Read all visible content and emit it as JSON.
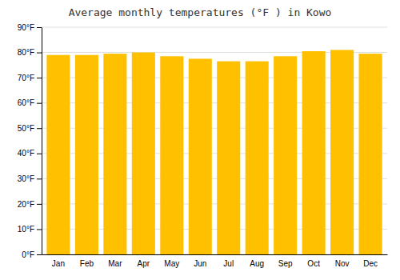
{
  "chart_data": {
    "type": "bar",
    "title": "Average monthly temperatures (°F ) in Kowo",
    "categories": [
      "Jan",
      "Feb",
      "Mar",
      "Apr",
      "May",
      "Jun",
      "Jul",
      "Aug",
      "Sep",
      "Oct",
      "Nov",
      "Dec"
    ],
    "values": [
      79,
      79,
      79.5,
      80,
      78.5,
      77.5,
      76.5,
      76.5,
      78.5,
      80.5,
      81,
      79.5
    ],
    "color": "#FFC000",
    "ylim": [
      0,
      90
    ],
    "yticks": [
      {
        "value": 0,
        "label": "0°F"
      },
      {
        "value": 10,
        "label": "10°F"
      },
      {
        "value": 20,
        "label": "20°F"
      },
      {
        "value": 30,
        "label": "30°F"
      },
      {
        "value": 40,
        "label": "40°F"
      },
      {
        "value": 50,
        "label": "50°F"
      },
      {
        "value": 60,
        "label": "60°F"
      },
      {
        "value": 70,
        "label": "70°F"
      },
      {
        "value": 80,
        "label": "80°F"
      },
      {
        "value": 90,
        "label": "90°F"
      }
    ],
    "grid": true
  }
}
